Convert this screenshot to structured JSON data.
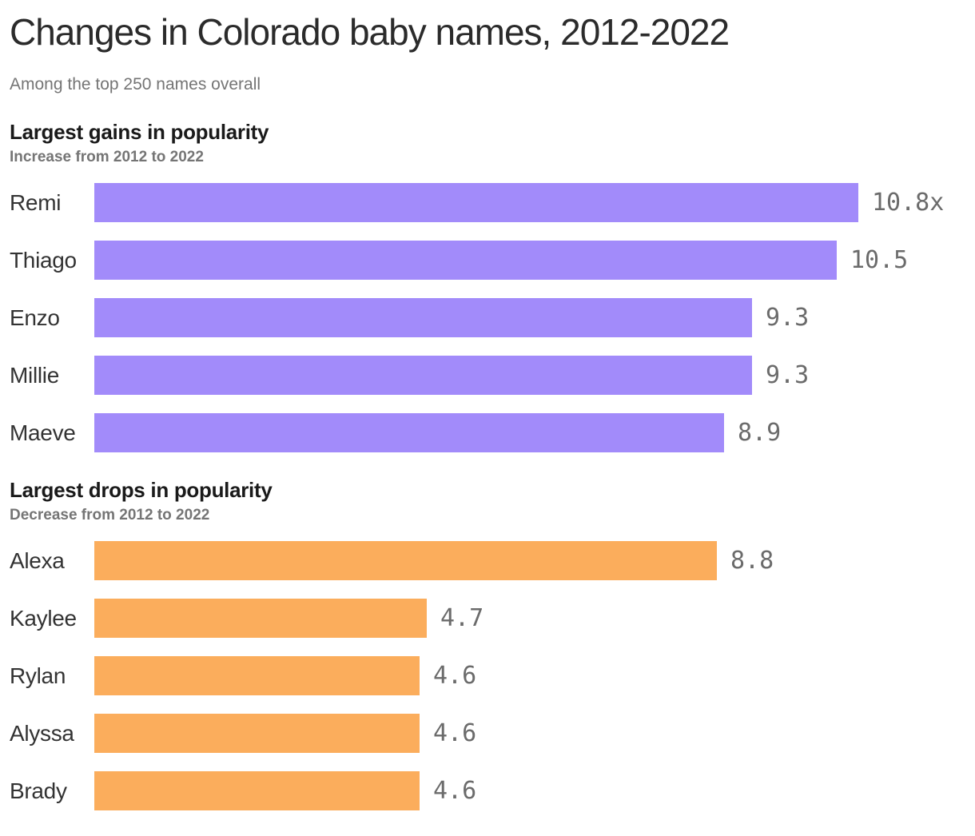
{
  "page": {
    "title": "Changes in Colorado baby names, 2012-2022",
    "subtitle": "Among the top 250 names overall"
  },
  "colors": {
    "gains_bar": "#a28bfa",
    "drops_bar": "#fbad5c",
    "title_text": "#2b2b2b",
    "muted_text": "#757575",
    "value_text": "#6b6b6b"
  },
  "chart_data": [
    {
      "type": "bar",
      "orientation": "horizontal",
      "section_title": "Largest gains in popularity",
      "section_subtitle": "Increase from 2012 to 2022",
      "categories": [
        "Remi",
        "Thiago",
        "Enzo",
        "Millie",
        "Maeve"
      ],
      "values": [
        10.8,
        10.5,
        9.3,
        9.3,
        8.9
      ],
      "value_labels": [
        "10.8x",
        "10.5",
        "9.3",
        "9.3",
        "8.9"
      ],
      "bar_color": "#a28bfa",
      "xlim": [
        0,
        10.8
      ],
      "grid": false,
      "legend": false
    },
    {
      "type": "bar",
      "orientation": "horizontal",
      "section_title": "Largest drops in popularity",
      "section_subtitle": "Decrease from 2012 to 2022",
      "categories": [
        "Alexa",
        "Kaylee",
        "Rylan",
        "Alyssa",
        "Brady"
      ],
      "values": [
        8.8,
        4.7,
        4.6,
        4.6,
        4.6
      ],
      "value_labels": [
        "8.8",
        "4.7",
        "4.6",
        "4.6",
        "4.6"
      ],
      "bar_color": "#fbad5c",
      "xlim": [
        0,
        10.8
      ],
      "grid": false,
      "legend": false
    }
  ]
}
